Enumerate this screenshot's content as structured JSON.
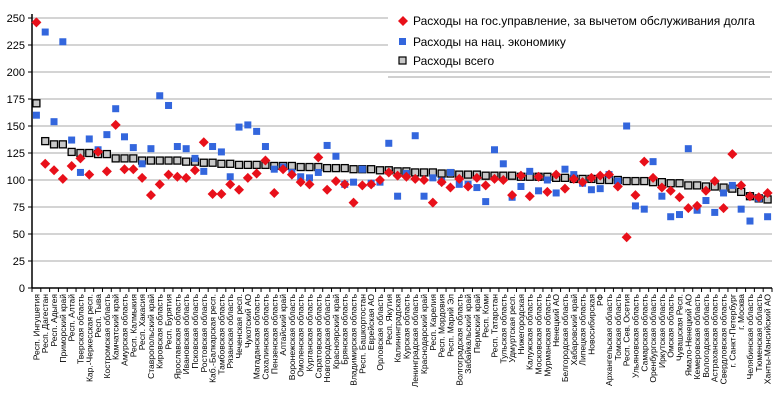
{
  "chart_data": {
    "type": "scatter",
    "title": "",
    "xlabel": "",
    "ylabel": "",
    "ylim": [
      0,
      250
    ],
    "yticks": [
      0,
      25,
      50,
      75,
      100,
      125,
      150,
      175,
      200,
      225,
      250
    ],
    "grid": true,
    "legend_position": "top-right",
    "categories": [
      "Респ. Ингушетия",
      "Респ. Дагестан",
      "Респ. Адыгея",
      "Приморский край",
      "Респ. Алтай",
      "Тверская область",
      "Кар.-Черкесская респ.",
      "Респ. Тыва",
      "Костромская область",
      "Камчатский край",
      "Амурская область",
      "Респ. Калмыкия",
      "Респ. Хакасия",
      "Ставропольский край",
      "Кировская область",
      "Респ. Бурятия",
      "Ярославская область",
      "Ивановская область",
      "Псковская область",
      "Ростовская область",
      "Каб.-Балкарская респ.",
      "Тамбовская область",
      "Рязанская область",
      "Чеченская респ.",
      "Чукотский АО",
      "Магаданская область",
      "Сахалинская область",
      "Пензенская область",
      "Алтайский край",
      "Воронежская область",
      "Омоленская область",
      "Курганская область",
      "Саратовская область",
      "Новгородская область",
      "Красноярский край",
      "Брянская область",
      "Владимирская область",
      "Респ. Башкортостан",
      "Еврейская АО",
      "Орловская область",
      "Респ. Якутия",
      "Калининградская",
      "Курская область",
      "Ленинградская область",
      "Краснодарский край",
      "Респ. Карелия",
      "Респ. Мордовия",
      "Респ. Марий Эл",
      "Волгоградская область",
      "Забайкальский край",
      "Пермский край",
      "Респ. Коми",
      "Респ. Татарстан",
      "Тульская область",
      "Удмуртская респ.",
      "Нижегородская",
      "Калужская область",
      "Московская область",
      "Мурманская область",
      "Ненецкий АО",
      "Белгородская область",
      "Хабаровский край",
      "Липецкая область",
      "Новосибирская",
      "РФ",
      "Архангельская область",
      "Томская область",
      "Респ. Сев. Осетия",
      "Ульяновская область",
      "Самарская область",
      "Оренбургская область",
      "Иркутская область",
      "Омская область",
      "Чувашская Респ.",
      "Ямало-Ненецкий АО",
      "Кемеровская область",
      "Вологодская область",
      "Астраханская область",
      "Свердловская область",
      "г. Санкт-Петербург",
      "г. Москва",
      "Челябинская область",
      "Тюменская область",
      "Ханты-Мансийский АО"
    ],
    "series": [
      {
        "name": "Расходы на гос.управление, за вычетом обслуживания долга",
        "marker": "diamond",
        "color": "#e8101a",
        "values": [
          246,
          115,
          109,
          101,
          113,
          120,
          105,
          126,
          108,
          151,
          110,
          110,
          102,
          86,
          96,
          105,
          103,
          102,
          109,
          135,
          87,
          87,
          96,
          91,
          102,
          106,
          118,
          88,
          110,
          105,
          98,
          96,
          121,
          91,
          99,
          96,
          79,
          95,
          96,
          100,
          107,
          104,
          103,
          101,
          100,
          79,
          98,
          93,
          101,
          94,
          102,
          95,
          101,
          100,
          86,
          104,
          85,
          103,
          89,
          105,
          92,
          101,
          98,
          102,
          104,
          105,
          94,
          47,
          86,
          117,
          102,
          93,
          90,
          84,
          74,
          76,
          90,
          99,
          74,
          124,
          95,
          85,
          84,
          88
        ]
      },
      {
        "name": "Расходы на нац. экономику",
        "marker": "square",
        "color": "#3366dd",
        "values": [
          160,
          237,
          154,
          228,
          137,
          107,
          138,
          128,
          142,
          166,
          140,
          130,
          115,
          129,
          178,
          169,
          131,
          129,
          120,
          108,
          131,
          126,
          103,
          149,
          151,
          145,
          131,
          110,
          112,
          107,
          103,
          102,
          107,
          132,
          122,
          96,
          98,
          110,
          97,
          98,
          134,
          85,
          106,
          141,
          85,
          102,
          99,
          107,
          96,
          96,
          93,
          80,
          128,
          115,
          84,
          94,
          108,
          90,
          100,
          88,
          110,
          105,
          97,
          91,
          92,
          105,
          99,
          150,
          76,
          73,
          117,
          85,
          66,
          68,
          129,
          72,
          81,
          70,
          88,
          95,
          73,
          62,
          83,
          66
        ]
      },
      {
        "name": "Расходы всего",
        "marker": "hollow-square",
        "color": "#c8c8c8",
        "values": [
          171,
          136,
          133,
          133,
          126,
          125,
          125,
          124,
          124,
          120,
          120,
          120,
          118,
          118,
          118,
          118,
          118,
          117,
          117,
          116,
          116,
          115,
          115,
          114,
          114,
          114,
          114,
          113,
          113,
          113,
          112,
          112,
          112,
          111,
          111,
          111,
          110,
          110,
          110,
          109,
          109,
          108,
          108,
          107,
          107,
          107,
          106,
          106,
          105,
          105,
          105,
          104,
          104,
          104,
          104,
          103,
          103,
          103,
          103,
          102,
          102,
          101,
          101,
          101,
          100,
          100,
          100,
          99,
          99,
          99,
          98,
          98,
          97,
          97,
          95,
          95,
          94,
          94,
          93,
          92,
          89,
          85,
          83,
          82
        ]
      }
    ]
  }
}
